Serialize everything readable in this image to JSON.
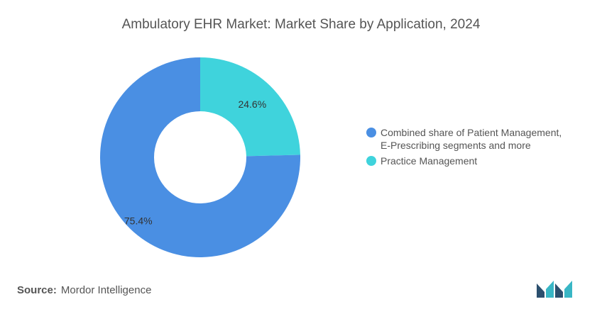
{
  "chart_data": {
    "type": "pie",
    "title": "Ambulatory EHR Market: Market Share by Application, 2024",
    "donut": true,
    "legend_position": "right",
    "series": [
      {
        "name": "Combined share of Patient Management,\nE-Prescribing segments and more",
        "value": 75.4,
        "label": "75.4%",
        "color": "#4a8fe3"
      },
      {
        "name": "Practice Management",
        "value": 24.6,
        "label": "24.6%",
        "color": "#3fd3dc"
      }
    ]
  },
  "footer": {
    "source_label": "Source:",
    "source_value": "Mordor Intelligence"
  },
  "colors": {
    "text": "#555555",
    "logo_dark": "#2b4f6e",
    "logo_teal": "#38b6c5"
  },
  "logo": {
    "icon": "mordor-intelligence-logo-icon"
  }
}
